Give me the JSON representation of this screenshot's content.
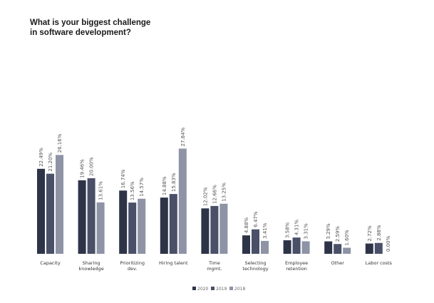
{
  "chart_data": {
    "type": "bar",
    "title_lines": [
      "What is your biggest challenge",
      "in software development?"
    ],
    "categories": [
      [
        "Capacity"
      ],
      [
        "Sharing",
        "knowledge"
      ],
      [
        "Prioritizing",
        "dev."
      ],
      [
        "Hiring talent"
      ],
      [
        "Time",
        "mgmt."
      ],
      [
        "Selecting",
        "technology"
      ],
      [
        "Employee",
        "retention"
      ],
      [
        "Other"
      ],
      [
        "Labor costs"
      ]
    ],
    "series": [
      {
        "name": "2020",
        "color": "#2e3448",
        "values": [
          22.49,
          19.46,
          16.74,
          14.88,
          12.02,
          4.88,
          3.58,
          3.29,
          2.72
        ],
        "labels": [
          "22.49%",
          "19.46%",
          "16.74%",
          "14.88%",
          "12.02%",
          "4.88%",
          "3.58%",
          "3.29%",
          "2.72%"
        ]
      },
      {
        "name": "2019",
        "color": "#4a5068",
        "values": [
          21.2,
          20.0,
          13.56,
          15.83,
          12.66,
          6.47,
          4.31,
          2.59,
          2.88
        ],
        "labels": [
          "21.20%",
          "20.00%",
          "13.56%",
          "15.83%",
          "12.66%",
          "6.47%",
          "4.31%",
          "2.59%",
          "2.88%"
        ]
      },
      {
        "name": "2018",
        "color": "#8e93a5",
        "values": [
          26.16,
          13.61,
          14.57,
          27.84,
          13.25,
          3.41,
          3.31,
          1.6,
          0.0
        ],
        "labels": [
          "26.16%",
          "13.61%",
          "14.57%",
          "27.84%",
          "13.25%",
          "3.41%",
          "3.31%",
          "1.60%",
          "0.00%"
        ]
      }
    ],
    "ylim": [
      0,
      30
    ],
    "legend": "bottom",
    "grid": false
  }
}
